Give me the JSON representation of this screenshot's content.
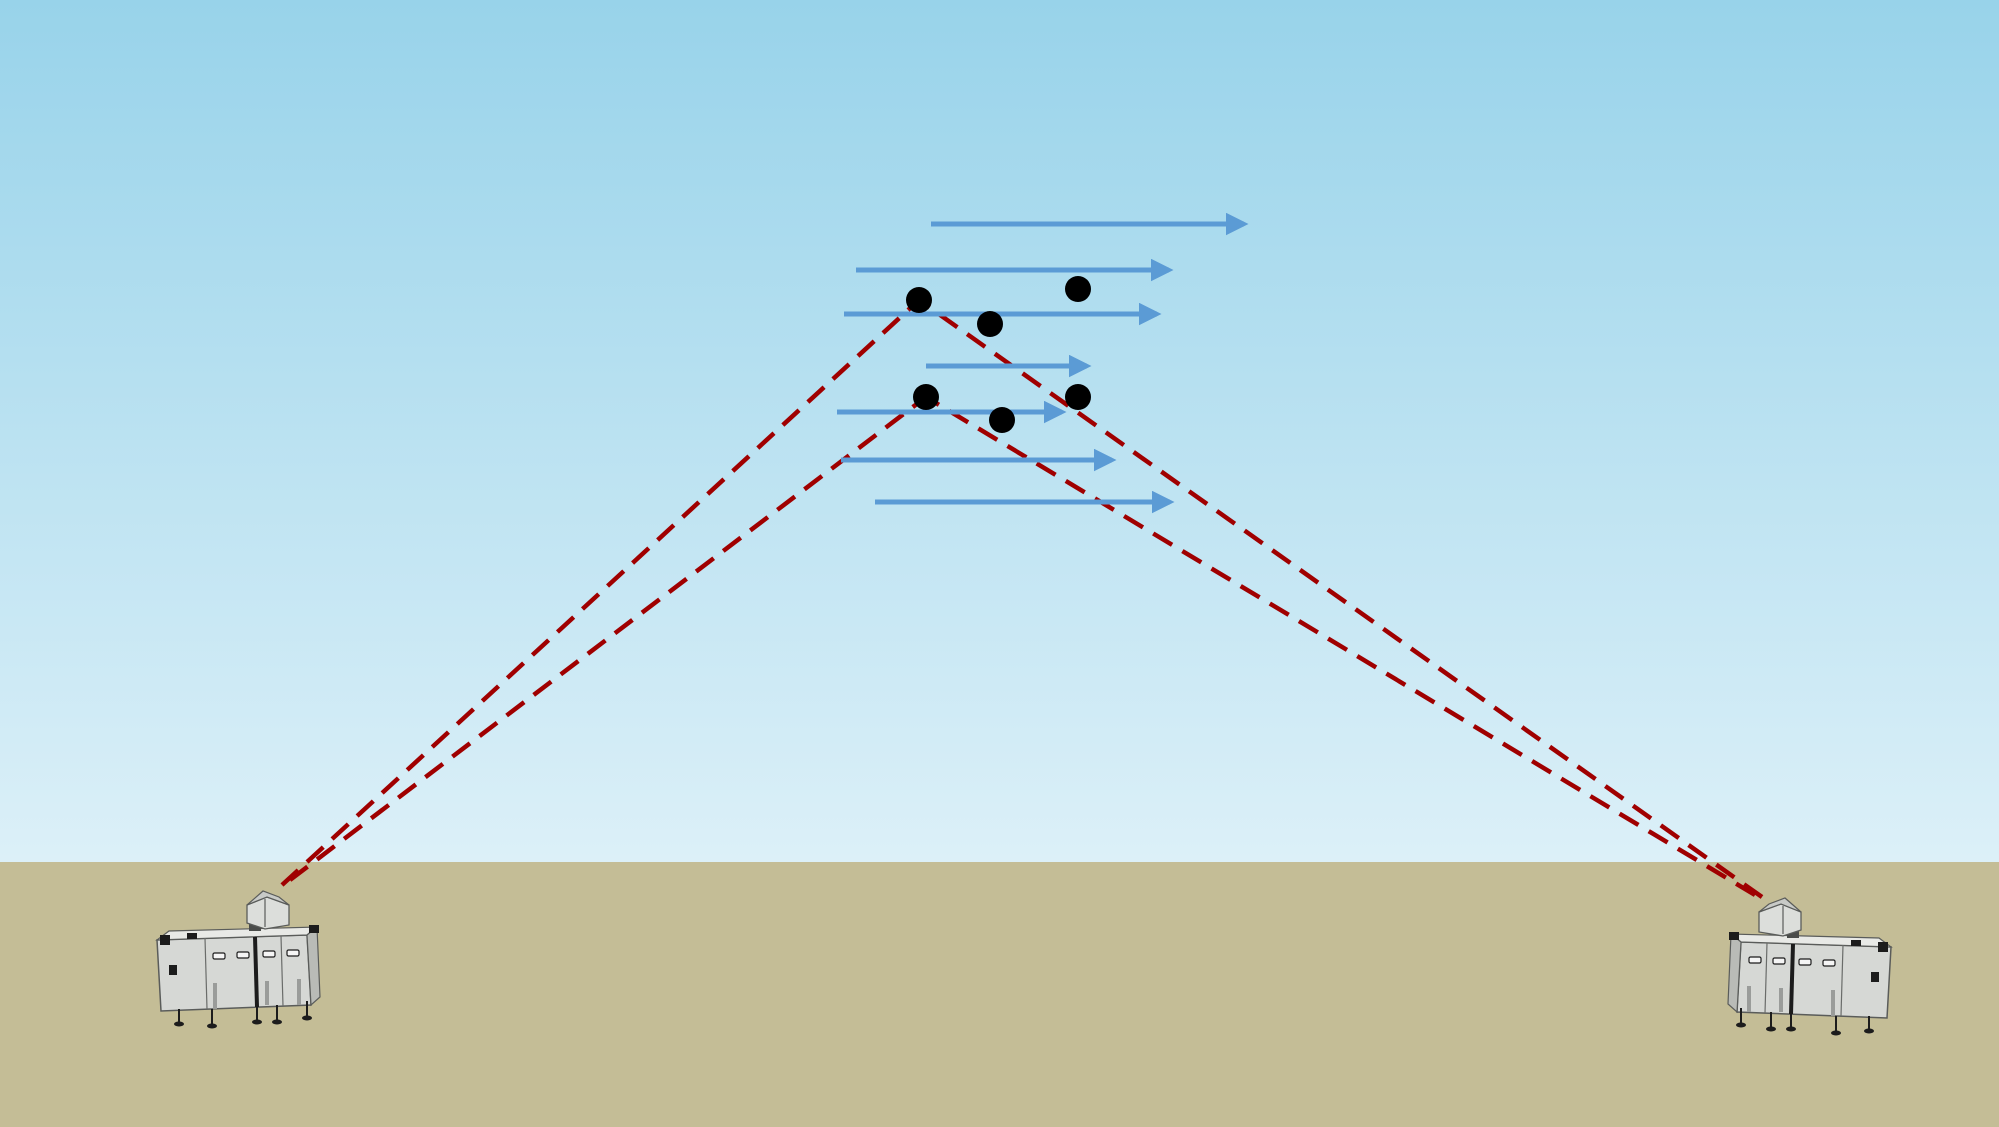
{
  "scene": {
    "colors": {
      "sky_top": "#98d3ea",
      "sky_bottom": "#dcf0f8",
      "ground": "#c4bd96",
      "wind_arrow": "#5b9bd5",
      "laser_beam": "#a00000",
      "particle": "#000000",
      "device_body": "#d6d8d5",
      "device_outline": "#5a5c5a",
      "device_dark": "#1c1c1c"
    },
    "icons": {
      "left_device": "lidar-unit-icon",
      "right_device": "lidar-unit-icon",
      "wind": "arrow-right-icon",
      "particle": "filled-circle-icon"
    }
  }
}
